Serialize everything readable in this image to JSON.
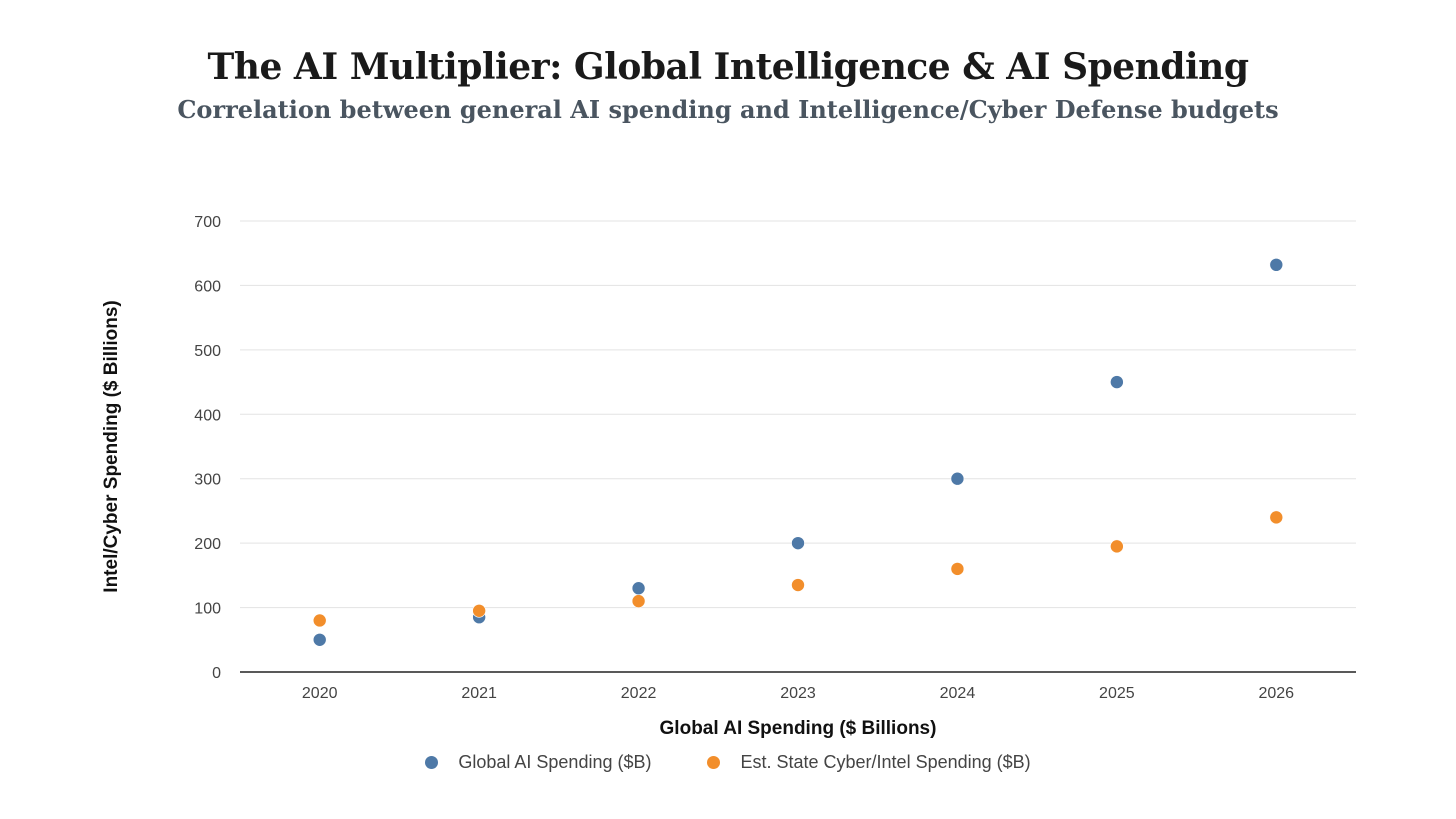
{
  "chart_data": {
    "type": "scatter",
    "title": "The AI Multiplier: Global Intelligence & AI Spending",
    "subtitle": "Correlation between general AI spending and Intelligence/Cyber Defense budgets",
    "xlabel": "Global AI Spending ($ Billions)",
    "ylabel": "Intel/Cyber Spending ($ Billions)",
    "categories": [
      "2020",
      "2021",
      "2022",
      "2023",
      "2024",
      "2025",
      "2026"
    ],
    "yticks": [
      0,
      100,
      200,
      300,
      400,
      500,
      600,
      700
    ],
    "ylim": [
      0,
      700
    ],
    "grid": true,
    "legend_position": "bottom",
    "series": [
      {
        "name": "Global AI Spending ($B)",
        "color": "#4e79a7",
        "values": [
          50,
          85,
          130,
          200,
          300,
          450,
          632
        ]
      },
      {
        "name": "Est. State Cyber/Intel Spending ($B)",
        "color": "#f28e2b",
        "values": [
          80,
          95,
          110,
          135,
          160,
          195,
          240
        ]
      }
    ]
  }
}
